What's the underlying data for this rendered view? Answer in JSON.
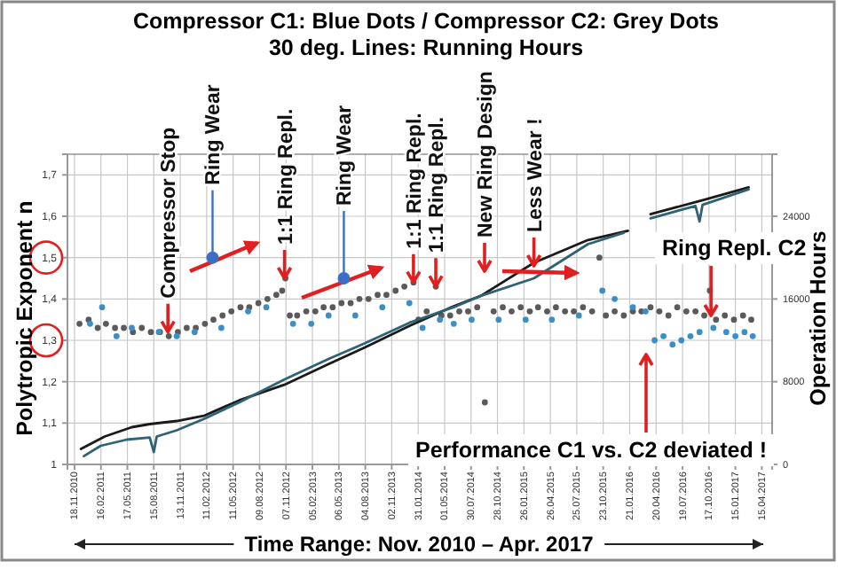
{
  "chart_data": {
    "type": "scatter",
    "title": "Compressor C1: Blue Dots / Compressor C2: Grey Dots",
    "subtitle": "30 deg. Lines: Running Hours",
    "ylabel": "Polytropic Exponent n",
    "y2label": "Operation Hours",
    "xlim": [
      "2010-10-25",
      "2017-05-20"
    ],
    "xticks": [
      {
        "value": "2010-11-18",
        "label": "18.11.2010"
      },
      {
        "value": "2011-02-16",
        "label": "16.02.2011"
      },
      {
        "value": "2011-05-17",
        "label": "17.05.2011"
      },
      {
        "value": "2011-08-15",
        "label": "15.08.2011"
      },
      {
        "value": "2011-11-13",
        "label": "13.11.2011"
      },
      {
        "value": "2012-02-11",
        "label": "11.02.2012"
      },
      {
        "value": "2012-05-11",
        "label": "11.05.2012"
      },
      {
        "value": "2012-08-09",
        "label": "09.08.2012"
      },
      {
        "value": "2012-11-07",
        "label": "07.11.2012"
      },
      {
        "value": "2013-02-05",
        "label": "05.02.2013"
      },
      {
        "value": "2013-05-06",
        "label": "06.05.2013"
      },
      {
        "value": "2013-08-04",
        "label": "04.08.2013"
      },
      {
        "value": "2013-11-02",
        "label": "02.11.2013"
      },
      {
        "value": "2014-01-31",
        "label": "31.01.2014"
      },
      {
        "value": "2014-05-01",
        "label": "01.05.2014"
      },
      {
        "value": "2014-07-30",
        "label": "30.07.2014"
      },
      {
        "value": "2014-10-28",
        "label": "28.10.2014"
      },
      {
        "value": "2015-01-26",
        "label": "26.01.2015"
      },
      {
        "value": "2015-04-26",
        "label": "26.04.2015"
      },
      {
        "value": "2015-07-25",
        "label": "25.07.2015"
      },
      {
        "value": "2015-10-23",
        "label": "23.10.2015"
      },
      {
        "value": "2016-01-21",
        "label": "21.01.2016"
      },
      {
        "value": "2016-04-20",
        "label": "20.04.2016"
      },
      {
        "value": "2016-07-19",
        "label": "19.07.2016"
      },
      {
        "value": "2016-10-17",
        "label": "17.10.2016"
      },
      {
        "value": "2017-01-15",
        "label": "15.01.2017"
      },
      {
        "value": "2017-04-15",
        "label": "15.04.2017"
      }
    ],
    "ylim": [
      1,
      1.75
    ],
    "yticks": [
      1,
      {
        "value": 1.1,
        "label": "1,1"
      },
      {
        "value": 1.2,
        "label": "1,2"
      },
      {
        "value": 1.3,
        "label": "1,3"
      },
      {
        "value": 1.4,
        "label": "1,4"
      },
      {
        "value": 1.5,
        "label": "1,5"
      },
      {
        "value": 1.6,
        "label": "1,6"
      },
      {
        "value": 1.7,
        "label": "1,7"
      }
    ],
    "y2lim": [
      0,
      30000
    ],
    "y2ticks": [
      0,
      8000,
      16000,
      24000
    ],
    "grid": true,
    "series": [
      {
        "type": "scatter",
        "color": "#5a5a5a",
        "marker": "circle",
        "x": [
          "2010-12-05",
          "2011-01-05",
          "2011-02-05",
          "2011-03-05",
          "2011-04-05",
          "2011-05-05",
          "2011-06-05",
          "2011-07-05",
          "2011-08-05",
          "2011-09-05",
          "2011-10-05",
          "2011-11-05",
          "2011-12-05",
          "2012-01-05",
          "2012-02-05",
          "2012-03-05",
          "2012-04-05",
          "2012-05-05",
          "2012-06-05",
          "2012-07-05",
          "2012-08-05",
          "2012-09-05",
          "2012-10-05",
          "2012-10-25",
          "2012-11-05",
          "2012-11-20",
          "2012-12-15",
          "2013-01-15",
          "2013-02-15",
          "2013-03-15",
          "2013-04-15",
          "2013-05-15",
          "2013-06-15",
          "2013-07-15",
          "2013-08-15",
          "2013-09-15",
          "2013-10-15",
          "2013-11-15",
          "2013-12-15",
          "2014-01-15",
          "2014-02-01",
          "2014-03-01",
          "2014-04-01",
          "2014-04-20",
          "2014-05-20",
          "2014-06-20",
          "2014-07-20",
          "2014-08-20",
          "2014-09-15",
          "2014-10-15",
          "2014-11-15",
          "2014-12-15",
          "2015-01-15",
          "2015-02-15",
          "2015-03-15",
          "2015-04-15",
          "2015-05-15",
          "2015-06-15",
          "2015-07-15",
          "2015-08-15",
          "2015-09-15",
          "2015-10-10",
          "2015-11-01",
          "2015-12-01",
          "2016-01-01",
          "2016-02-01",
          "2016-03-01",
          "2016-04-01",
          "2016-05-01",
          "2016-06-01",
          "2016-07-01",
          "2016-08-01",
          "2016-09-01",
          "2016-10-01",
          "2016-10-20",
          "2016-11-10",
          "2016-12-10",
          "2017-01-10",
          "2017-02-10",
          "2017-03-10"
        ],
        "values": [
          1.34,
          1.35,
          1.33,
          1.34,
          1.33,
          1.33,
          1.32,
          1.33,
          1.32,
          1.32,
          1.31,
          1.32,
          1.33,
          1.33,
          1.34,
          1.35,
          1.36,
          1.37,
          1.38,
          1.38,
          1.39,
          1.4,
          1.41,
          1.42,
          1.45,
          1.36,
          1.36,
          1.37,
          1.37,
          1.38,
          1.38,
          1.39,
          1.39,
          1.4,
          1.4,
          1.41,
          1.41,
          1.42,
          1.43,
          1.44,
          1.35,
          1.37,
          1.43,
          1.36,
          1.36,
          1.37,
          1.37,
          1.38,
          1.15,
          1.37,
          1.38,
          1.37,
          1.38,
          1.37,
          1.38,
          1.37,
          1.38,
          1.37,
          1.37,
          1.38,
          1.37,
          1.5,
          1.36,
          1.37,
          1.36,
          1.37,
          1.37,
          1.38,
          1.37,
          1.36,
          1.38,
          1.37,
          1.37,
          1.36,
          1.42,
          1.35,
          1.36,
          1.35,
          1.36,
          1.35
        ]
      },
      {
        "type": "scatter",
        "color": "#3b8fc6",
        "marker": "circle",
        "x": [
          "2011-01-10",
          "2011-02-20",
          "2011-04-10",
          "2011-06-01",
          "2011-09-01",
          "2011-11-01",
          "2012-01-01",
          "2012-04-01",
          "2012-07-01",
          "2012-09-01",
          "2012-12-01",
          "2013-02-01",
          "2013-04-01",
          "2013-07-01",
          "2013-10-01",
          "2014-01-01",
          "2014-02-15",
          "2014-04-15",
          "2014-06-01",
          "2014-08-01",
          "2014-11-01",
          "2015-02-01",
          "2015-05-01",
          "2015-08-01",
          "2015-10-20",
          "2015-12-01",
          "2016-02-01",
          "2016-03-15",
          "2016-04-15",
          "2016-05-15",
          "2016-06-15",
          "2016-07-15",
          "2016-08-15",
          "2016-09-15",
          "2016-11-01",
          "2016-12-15",
          "2017-01-15",
          "2017-02-15",
          "2017-03-15"
        ],
        "values": [
          1.34,
          1.38,
          1.31,
          1.33,
          1.32,
          1.31,
          1.32,
          1.33,
          1.37,
          1.38,
          1.34,
          1.34,
          1.36,
          1.36,
          1.38,
          1.39,
          1.33,
          1.35,
          1.34,
          1.35,
          1.35,
          1.35,
          1.35,
          1.36,
          1.42,
          1.4,
          1.38,
          1.37,
          1.3,
          1.31,
          1.29,
          1.3,
          1.31,
          1.32,
          1.33,
          1.32,
          1.31,
          1.32,
          1.31
        ]
      },
      {
        "type": "line",
        "axis": "y2",
        "color": "#1a1a1a",
        "marker": "none",
        "x": [
          "2010-12-10",
          "2011-03-01",
          "2011-06-01",
          "2011-08-01",
          "2011-11-01",
          "2012-02-01",
          "2012-06-01",
          "2012-11-01",
          "2013-04-01",
          "2013-08-01",
          "2014-01-01",
          "2014-06-01",
          "2014-09-01",
          "2015-03-01",
          "2015-09-01",
          "2016-01-15",
          "2016-02-20",
          "2016-04-01",
          "2016-10-01",
          "2017-03-01"
        ],
        "values": [
          1500,
          2700,
          3600,
          3900,
          4200,
          4700,
          6200,
          7700,
          9700,
          11300,
          13400,
          15300,
          16300,
          19500,
          21700,
          22600,
          null,
          24200,
          25600,
          26800
        ]
      },
      {
        "type": "line",
        "axis": "y2",
        "color": "#2f6274",
        "marker": "none",
        "x": [
          "2010-12-20",
          "2011-02-15",
          "2011-05-15",
          "2011-08-01",
          "2011-08-15",
          "2011-08-25",
          "2011-11-01",
          "2012-02-01",
          "2012-06-01",
          "2012-11-01",
          "2013-04-01",
          "2013-08-01",
          "2014-01-01",
          "2014-06-01",
          "2014-09-01",
          "2015-03-01",
          "2015-09-01",
          "2016-01-01",
          "2016-02-20",
          "2016-04-01",
          "2016-09-01",
          "2016-09-15",
          "2016-09-25",
          "2017-03-01"
        ],
        "values": [
          800,
          1800,
          2400,
          2600,
          1200,
          2700,
          3300,
          4400,
          6000,
          8200,
          10200,
          11700,
          13700,
          15200,
          16300,
          18000,
          21300,
          22400,
          null,
          23800,
          25000,
          23500,
          25100,
          26600
        ]
      }
    ],
    "annotations": [
      {
        "text": "Compressor Stop",
        "x": "2011-10-02",
        "y": 1.32
      },
      {
        "text": "Ring Wear",
        "x": "2012-03-02",
        "y": 1.5
      },
      {
        "text": "1:1 Ring Repl.",
        "x": "2012-11-02",
        "y": 1.45
      },
      {
        "text": "Ring Wear",
        "x": "2013-05-23",
        "y": 1.45
      },
      {
        "text": "1:1 Ring Repl.",
        "x": "2014-01-15",
        "y": 1.44
      },
      {
        "text": "1:1 Ring Repl.",
        "x": "2014-04-01",
        "y": 1.43
      },
      "New Ring Design",
      {
        "text": "Less Wear !",
        "x": "2015-03-01",
        "y": 1.48
      },
      {
        "text": "Ring Repl. C2",
        "x": "2016-10-24",
        "y": 1.36
      },
      "Performance C1 vs. C2 deviated !",
      "Time Range: Nov. 2010 – Apr. 2017"
    ]
  }
}
